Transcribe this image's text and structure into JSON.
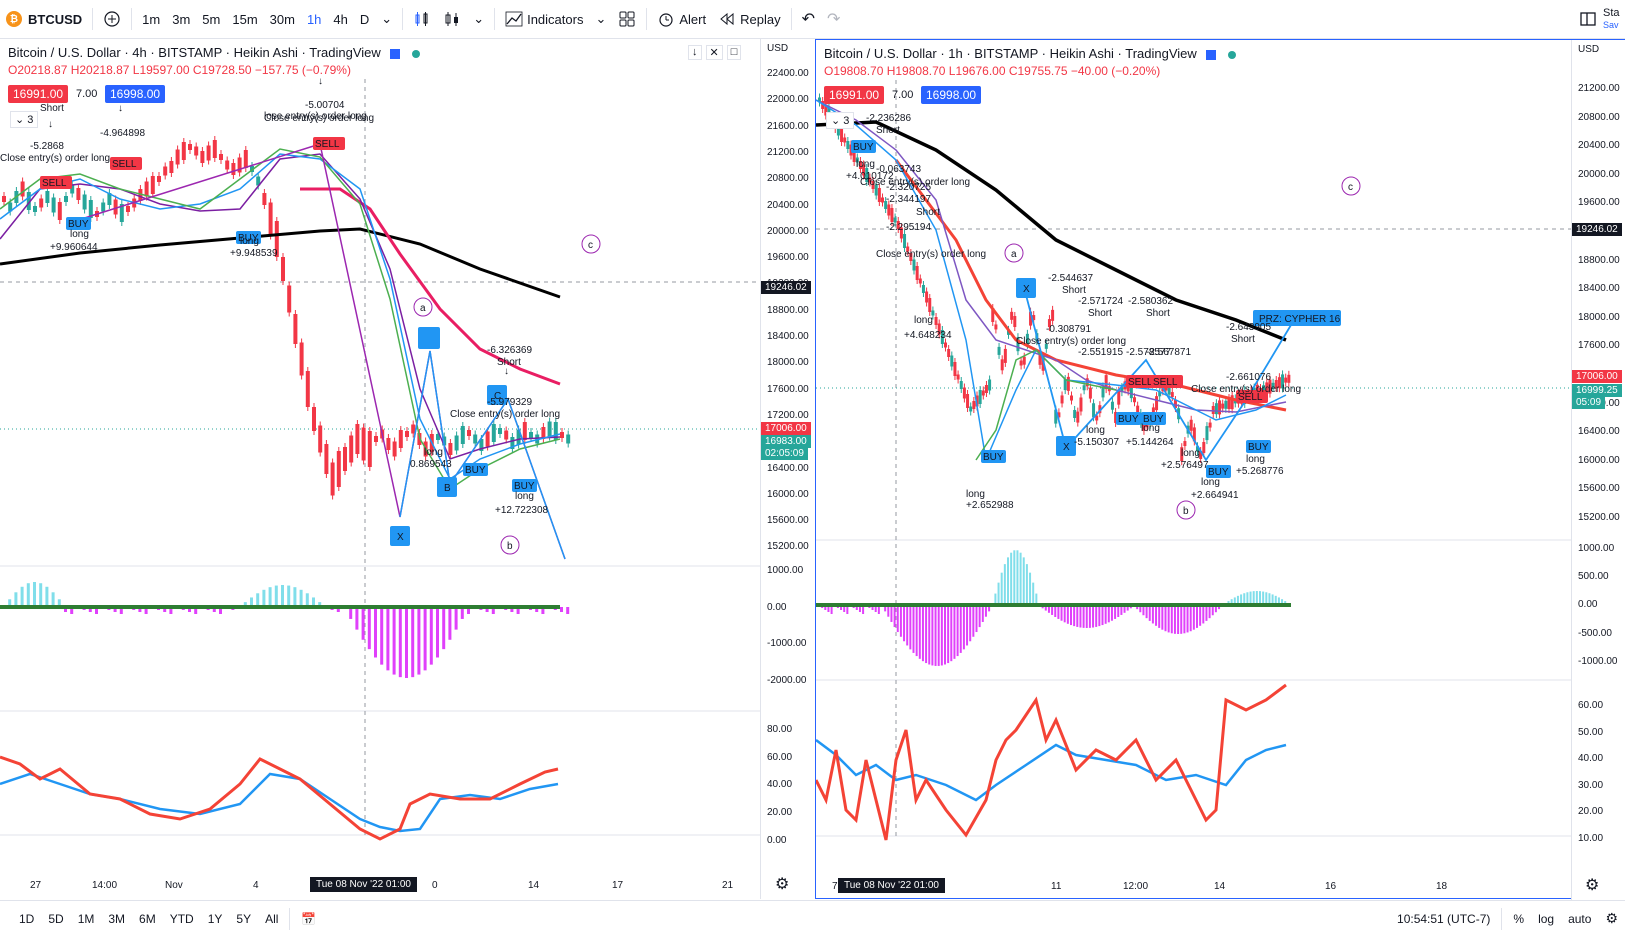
{
  "toolbar": {
    "symbol": "BTCUSD",
    "timeframes": [
      "1m",
      "3m",
      "5m",
      "15m",
      "30m",
      "1h",
      "4h",
      "D"
    ],
    "active_timeframe": "1h",
    "indicators_label": "Indicators",
    "alert_label": "Alert",
    "replay_label": "Replay",
    "right_label_1": "Sta",
    "right_label_2": "Sav"
  },
  "left_chart": {
    "title": "Bitcoin / U.S. Dollar · 4h · BITSTAMP · Heikin Ashi · TradingView",
    "ohlc": "O20218.87 H20218.87 L19597.00 C19728.50 −157.75 (−0.79%)",
    "bid": "16991.00",
    "spread": "7.00",
    "ask": "16998.00",
    "currency": "USD",
    "price_labels": [
      "22400.00",
      "22000.00",
      "21600.00",
      "21200.00",
      "20800.00",
      "20400.00",
      "20000.00",
      "19600.00",
      "19200.00",
      "18800.00",
      "18400.00",
      "18000.00",
      "17600.00",
      "17200.00",
      "16800.00",
      "16400.00",
      "16000.00",
      "15600.00",
      "15200.00"
    ],
    "crosshair_price": "19246.02",
    "last_price": "17006.00",
    "last_price2": "16983.00",
    "countdown": "02:05:09",
    "macd_labels": [
      "1000.00",
      "0.00",
      "-1000.00",
      "-2000.00"
    ],
    "rsi_labels": [
      "80.00",
      "60.00",
      "40.00",
      "20.00",
      "0.00"
    ],
    "time_labels": [
      "27",
      "14:00",
      "Nov",
      "4",
      "0",
      "14",
      "17",
      "21"
    ],
    "crosshair_time": "Tue 08 Nov '22  01:00",
    "annotations": [
      "Short",
      "-5.2868",
      "-4.964898",
      "Close entry(s) order long",
      "lose entry(s) order long",
      "-5.00704",
      "Close entry(s) order long",
      "long",
      "+9.960644",
      "long",
      "+9.948539",
      "-6.326369",
      "Short",
      "-5.979329",
      "Close entry(s) order long",
      "long",
      "0.869543",
      "long",
      "+12.722308",
      "a",
      "b",
      "c",
      "X",
      "B",
      "C",
      "BUY",
      "SELL"
    ]
  },
  "right_chart": {
    "title": "Bitcoin / U.S. Dollar · 1h · BITSTAMP · Heikin Ashi · TradingView",
    "ohlc": "O19808.70 H19808.70 L19676.00 C19755.75 −40.00 (−0.20%)",
    "bid": "16991.00",
    "spread": "7.00",
    "ask": "16998.00",
    "currency": "USD",
    "price_labels": [
      "21200.00",
      "20800.00",
      "20400.00",
      "20000.00",
      "19600.00",
      "19200.00",
      "18800.00",
      "18400.00",
      "18000.00",
      "17600.00",
      "17200.00",
      "16800.00",
      "16400.00",
      "16000.00",
      "15600.00",
      "15200.00"
    ],
    "crosshair_price": "19246.02",
    "last_price": "17006.00",
    "last_price2": "16999.25",
    "countdown": "05:09",
    "macd_labels": [
      "1000.00",
      "500.00",
      "0.00",
      "-500.00",
      "-1000.00"
    ],
    "rsi_labels": [
      "60.00",
      "50.00",
      "40.00",
      "30.00",
      "20.00",
      "10.00"
    ],
    "time_labels": [
      "7",
      "11",
      "12:00",
      "14",
      "16",
      "18"
    ],
    "crosshair_time": "Tue 08 Nov '22  01:00",
    "prz_label": "PRZ: CYPHER 16",
    "annotations": [
      "-2.236286",
      "Short",
      "long",
      "+4.010172",
      "-0.063743",
      "Close entry(s) order long",
      "-2.320725",
      "-2.344197",
      "Short",
      "-2.295194",
      "Close entry(s) order long",
      "-2.544637",
      "Short",
      "-2.571724",
      "Short",
      "-2.580362",
      "Short",
      "-0.308791",
      "Close entry(s) order long",
      "-2.551915",
      "-2.578577",
      "-2.567871",
      "-2.643905",
      "Short",
      "-2.661076",
      "Close entry(s) order long",
      "long",
      "+4.648234",
      "long",
      "+2.652988",
      "long",
      "-5.150307",
      "long",
      "+5.144264",
      "long",
      "+2.576497",
      "long",
      "+2.664941",
      "long",
      "+5.268776",
      "a",
      "b",
      "c",
      "X",
      "BUY",
      "SELL"
    ]
  },
  "bottom": {
    "ranges": [
      "1D",
      "5D",
      "1M",
      "3M",
      "6M",
      "YTD",
      "1Y",
      "5Y",
      "All"
    ],
    "clock": "10:54:51 (UTC-7)",
    "pct_label": "%",
    "log_label": "log",
    "auto_label": "auto"
  },
  "colors": {
    "accent": "#2962ff",
    "bull": "#26a69a",
    "bear": "#f23645",
    "ema_black": "#000000",
    "ema_red": "#e91e63",
    "rsi_red": "#f44336",
    "rsi_blue": "#2196f3"
  }
}
